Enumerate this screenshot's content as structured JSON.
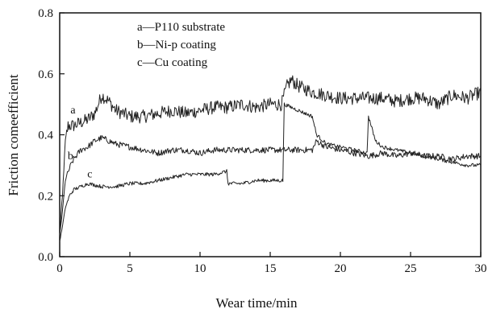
{
  "chart_data": {
    "type": "line",
    "xlabel": "Wear time/min",
    "ylabel": "Friction comeefficient",
    "xlim": [
      0,
      30
    ],
    "ylim": [
      0,
      0.8
    ],
    "x_ticks": [
      "0",
      "5",
      "10",
      "15",
      "20",
      "25",
      "30"
    ],
    "y_ticks": [
      "0.0",
      "0.2",
      "0.4",
      "0.6",
      "0.8"
    ],
    "grid": false,
    "legend_position": "top-left",
    "series": [
      {
        "marker": "a",
        "legend_text": "a—P110 substrate",
        "color": "#222222",
        "x": [
          0,
          0.2,
          0.4,
          0.6,
          1.0,
          1.5,
          2.0,
          2.5,
          3.0,
          3.5,
          4.0,
          5.0,
          6.0,
          7.0,
          8.0,
          9.0,
          10.0,
          11.0,
          12.0,
          13.0,
          14.0,
          15.0,
          15.8,
          16.2,
          16.5,
          17.0,
          18.0,
          19.0,
          20.0,
          21.0,
          22.0,
          23.0,
          24.0,
          25.0,
          26.0,
          27.0,
          28.0,
          29.0,
          30.0
        ],
        "y": [
          0.08,
          0.2,
          0.38,
          0.43,
          0.43,
          0.44,
          0.45,
          0.47,
          0.53,
          0.51,
          0.48,
          0.46,
          0.46,
          0.47,
          0.48,
          0.47,
          0.48,
          0.49,
          0.49,
          0.5,
          0.49,
          0.5,
          0.5,
          0.56,
          0.58,
          0.56,
          0.54,
          0.53,
          0.52,
          0.52,
          0.52,
          0.52,
          0.51,
          0.52,
          0.52,
          0.5,
          0.53,
          0.52,
          0.54
        ]
      },
      {
        "marker": "b",
        "legend_text": "b—Ni-p coating",
        "color": "#222222",
        "x": [
          0,
          0.2,
          0.4,
          0.7,
          1.0,
          1.5,
          2.0,
          2.5,
          3.0,
          4.0,
          5.0,
          6.0,
          7.0,
          8.0,
          9.0,
          10.0,
          11.0,
          12.0,
          13.0,
          14.0,
          15.0,
          16.0,
          17.0,
          18.0,
          18.3,
          19.0,
          20.0,
          21.0,
          22.0,
          23.0,
          24.0,
          25.0,
          26.0,
          27.0,
          28.0,
          29.0,
          30.0
        ],
        "y": [
          0.07,
          0.15,
          0.25,
          0.29,
          0.32,
          0.35,
          0.36,
          0.38,
          0.39,
          0.37,
          0.36,
          0.35,
          0.34,
          0.35,
          0.35,
          0.34,
          0.35,
          0.35,
          0.35,
          0.35,
          0.35,
          0.35,
          0.35,
          0.35,
          0.38,
          0.36,
          0.35,
          0.34,
          0.33,
          0.34,
          0.33,
          0.34,
          0.33,
          0.33,
          0.32,
          0.33,
          0.33
        ]
      },
      {
        "marker": "c",
        "legend_text": "c—Cu coating",
        "color": "#222222",
        "x": [
          0,
          0.2,
          0.4,
          0.7,
          1.0,
          1.5,
          2.0,
          3.0,
          4.0,
          5.0,
          6.0,
          7.0,
          8.0,
          9.0,
          10.0,
          11.0,
          11.9,
          12.0,
          13.0,
          14.0,
          15.0,
          15.9,
          16.0,
          17.0,
          18.0,
          18.3,
          19.0,
          20.0,
          21.0,
          21.9,
          22.0,
          22.5,
          23.0,
          24.0,
          25.0,
          26.0,
          27.0,
          28.0,
          29.0,
          30.0
        ],
        "y": [
          0.05,
          0.1,
          0.16,
          0.2,
          0.22,
          0.23,
          0.24,
          0.23,
          0.23,
          0.24,
          0.24,
          0.25,
          0.26,
          0.27,
          0.27,
          0.27,
          0.28,
          0.24,
          0.24,
          0.25,
          0.25,
          0.25,
          0.5,
          0.48,
          0.46,
          0.4,
          0.37,
          0.36,
          0.35,
          0.34,
          0.46,
          0.38,
          0.36,
          0.35,
          0.34,
          0.33,
          0.32,
          0.31,
          0.3,
          0.3
        ]
      }
    ],
    "legend": [
      "a—P110 substrate",
      "b—Ni-p coating",
      "c—Cu coating"
    ]
  }
}
